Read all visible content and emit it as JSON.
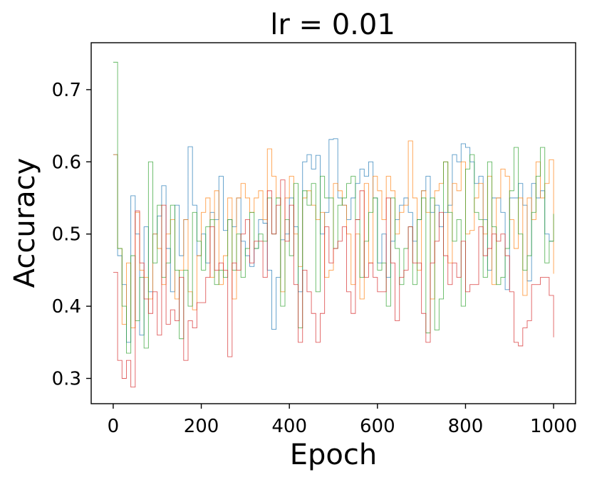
{
  "chart_data": {
    "type": "line",
    "title": "lr = 0.01",
    "xlabel": "Epoch",
    "ylabel": "Accuracy",
    "xlim": [
      -50,
      1050
    ],
    "ylim": [
      0.265,
      0.765
    ],
    "xticks": [
      0,
      200,
      400,
      600,
      800,
      1000
    ],
    "xtick_labels": [
      "0",
      "200",
      "400",
      "600",
      "800",
      "1000"
    ],
    "yticks": [
      0.3,
      0.4,
      0.5,
      0.6,
      0.7
    ],
    "ytick_labels": [
      "0.3",
      "0.4",
      "0.5",
      "0.6",
      "0.7"
    ],
    "grid": false,
    "x": [
      0,
      10,
      20,
      30,
      40,
      50,
      60,
      70,
      80,
      90,
      100,
      110,
      120,
      130,
      140,
      150,
      160,
      170,
      180,
      190,
      200,
      210,
      220,
      230,
      240,
      250,
      260,
      270,
      280,
      290,
      300,
      310,
      320,
      330,
      340,
      350,
      360,
      370,
      380,
      390,
      400,
      410,
      420,
      430,
      440,
      450,
      460,
      470,
      480,
      490,
      500,
      510,
      520,
      530,
      540,
      550,
      560,
      570,
      580,
      590,
      600,
      610,
      620,
      630,
      640,
      650,
      660,
      670,
      680,
      690,
      700,
      710,
      720,
      730,
      740,
      750,
      760,
      770,
      780,
      790,
      800,
      810,
      820,
      830,
      840,
      850,
      860,
      870,
      880,
      890,
      900,
      910,
      920,
      930,
      940,
      950,
      960,
      970,
      980,
      990,
      1000
    ],
    "series": [
      {
        "color": "#1f77b4",
        "values": [
          0.61,
          0.47,
          0.43,
          0.35,
          0.553,
          0.5,
          0.36,
          0.51,
          0.42,
          0.5,
          0.525,
          0.567,
          0.48,
          0.42,
          0.54,
          0.47,
          0.52,
          0.621,
          0.54,
          0.47,
          0.5,
          0.46,
          0.53,
          0.52,
          0.58,
          0.505,
          0.52,
          0.51,
          0.55,
          0.49,
          0.47,
          0.455,
          0.48,
          0.52,
          0.515,
          0.45,
          0.368,
          0.44,
          0.492,
          0.5,
          0.55,
          0.51,
          0.42,
          0.6,
          0.61,
          0.59,
          0.609,
          0.5,
          0.53,
          0.631,
          0.632,
          0.55,
          0.54,
          0.52,
          0.55,
          0.57,
          0.59,
          0.58,
          0.6,
          0.55,
          0.46,
          0.5,
          0.44,
          0.49,
          0.52,
          0.54,
          0.55,
          0.53,
          0.49,
          0.52,
          0.56,
          0.58,
          0.53,
          0.54,
          0.51,
          0.53,
          0.54,
          0.61,
          0.6,
          0.625,
          0.62,
          0.6,
          0.57,
          0.58,
          0.52,
          0.45,
          0.55,
          0.55,
          0.53,
          0.423,
          0.55,
          0.55,
          0.57,
          0.54,
          0.435,
          0.57,
          0.55,
          0.56,
          0.5,
          0.49,
          0.49
        ]
      },
      {
        "color": "#ff7f0e",
        "values": [
          0.61,
          0.48,
          0.375,
          0.46,
          0.37,
          0.53,
          0.45,
          0.44,
          0.41,
          0.5,
          0.48,
          0.43,
          0.5,
          0.52,
          0.41,
          0.45,
          0.52,
          0.42,
          0.395,
          0.47,
          0.53,
          0.55,
          0.44,
          0.56,
          0.43,
          0.47,
          0.55,
          0.41,
          0.55,
          0.57,
          0.55,
          0.53,
          0.55,
          0.56,
          0.52,
          0.618,
          0.58,
          0.55,
          0.42,
          0.55,
          0.58,
          0.5,
          0.455,
          0.55,
          0.56,
          0.54,
          0.52,
          0.53,
          0.44,
          0.45,
          0.57,
          0.56,
          0.54,
          0.5,
          0.43,
          0.5,
          0.41,
          0.57,
          0.46,
          0.58,
          0.56,
          0.52,
          0.58,
          0.56,
          0.5,
          0.53,
          0.54,
          0.629,
          0.55,
          0.45,
          0.56,
          0.53,
          0.41,
          0.56,
          0.57,
          0.6,
          0.46,
          0.57,
          0.56,
          0.6,
          0.5,
          0.505,
          0.55,
          0.57,
          0.5,
          0.58,
          0.43,
          0.55,
          0.59,
          0.58,
          0.52,
          0.48,
          0.55,
          0.415,
          0.55,
          0.52,
          0.6,
          0.55,
          0.57,
          0.603,
          0.445
        ]
      },
      {
        "color": "#2ca02c",
        "values": [
          0.738,
          0.48,
          0.4,
          0.335,
          0.47,
          0.38,
          0.44,
          0.342,
          0.6,
          0.46,
          0.54,
          0.44,
          0.46,
          0.54,
          0.45,
          0.355,
          0.45,
          0.4,
          0.53,
          0.49,
          0.45,
          0.51,
          0.52,
          0.43,
          0.45,
          0.44,
          0.52,
          0.45,
          0.5,
          0.44,
          0.48,
          0.53,
          0.48,
          0.5,
          0.49,
          0.55,
          0.5,
          0.55,
          0.4,
          0.52,
          0.47,
          0.57,
          0.37,
          0.56,
          0.54,
          0.57,
          0.42,
          0.58,
          0.55,
          0.55,
          0.48,
          0.54,
          0.55,
          0.57,
          0.58,
          0.52,
          0.44,
          0.49,
          0.53,
          0.55,
          0.45,
          0.46,
          0.4,
          0.55,
          0.48,
          0.43,
          0.48,
          0.51,
          0.43,
          0.52,
          0.55,
          0.363,
          0.55,
          0.367,
          0.41,
          0.6,
          0.53,
          0.49,
          0.52,
          0.4,
          0.59,
          0.61,
          0.53,
          0.52,
          0.44,
          0.6,
          0.51,
          0.43,
          0.44,
          0.48,
          0.56,
          0.62,
          0.5,
          0.45,
          0.47,
          0.53,
          0.58,
          0.62,
          0.46,
          0.49,
          0.528
        ]
      },
      {
        "color": "#d62728",
        "values": [
          0.447,
          0.325,
          0.3,
          0.325,
          0.288,
          0.532,
          0.46,
          0.41,
          0.39,
          0.42,
          0.36,
          0.54,
          0.375,
          0.395,
          0.38,
          0.44,
          0.325,
          0.38,
          0.37,
          0.405,
          0.405,
          0.44,
          0.51,
          0.45,
          0.46,
          0.45,
          0.33,
          0.46,
          0.45,
          0.5,
          0.52,
          0.46,
          0.49,
          0.49,
          0.44,
          0.56,
          0.5,
          0.54,
          0.575,
          0.49,
          0.54,
          0.43,
          0.35,
          0.45,
          0.42,
          0.39,
          0.35,
          0.39,
          0.51,
          0.46,
          0.48,
          0.49,
          0.51,
          0.42,
          0.39,
          0.52,
          0.56,
          0.44,
          0.46,
          0.44,
          0.42,
          0.42,
          0.55,
          0.46,
          0.38,
          0.44,
          0.45,
          0.51,
          0.46,
          0.46,
          0.39,
          0.35,
          0.46,
          0.49,
          0.53,
          0.47,
          0.43,
          0.46,
          0.44,
          0.49,
          0.42,
          0.43,
          0.43,
          0.51,
          0.47,
          0.48,
          0.5,
          0.49,
          0.5,
          0.47,
          0.42,
          0.35,
          0.345,
          0.37,
          0.38,
          0.43,
          0.43,
          0.44,
          0.44,
          0.415,
          0.357
        ]
      }
    ]
  }
}
